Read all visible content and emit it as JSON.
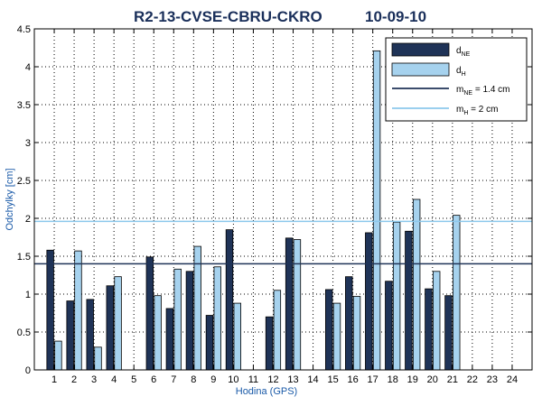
{
  "chart_data": {
    "type": "bar",
    "title": "R2-13-CVSE-CBRU-CKRO",
    "date": "10-09-10",
    "xlabel": "Hodina (GPS)",
    "ylabel": "Odchylky [cm]",
    "ylim": [
      0,
      4.5
    ],
    "yticks": [
      "0",
      "0.5",
      "1",
      "1.5",
      "2",
      "2.5",
      "3",
      "3.5",
      "4",
      "4.5"
    ],
    "categories": [
      "1",
      "2",
      "3",
      "4",
      "5",
      "6",
      "7",
      "8",
      "9",
      "10",
      "11",
      "12",
      "13",
      "14",
      "15",
      "16",
      "17",
      "18",
      "19",
      "20",
      "21",
      "22",
      "23",
      "24"
    ],
    "grid": true,
    "legend_position": "top-right",
    "series": [
      {
        "name": "dNE",
        "label_main": "d",
        "label_sub": "NE",
        "color": "#1f3357",
        "values": [
          1.58,
          0.91,
          0.93,
          1.11,
          null,
          1.49,
          0.81,
          1.3,
          0.72,
          1.85,
          null,
          0.7,
          1.74,
          null,
          1.06,
          1.23,
          1.81,
          1.17,
          1.83,
          1.07,
          0.98,
          null,
          null,
          null
        ]
      },
      {
        "name": "dH",
        "label_main": "d",
        "label_sub": "H",
        "color": "#a6d2ee",
        "values": [
          0.38,
          1.57,
          0.3,
          1.23,
          null,
          0.98,
          1.33,
          1.63,
          1.36,
          0.88,
          null,
          1.05,
          1.72,
          null,
          0.88,
          0.97,
          4.21,
          1.95,
          2.25,
          1.3,
          2.04,
          null,
          null,
          null
        ]
      }
    ],
    "reference_lines": [
      {
        "name": "mNE",
        "label_main": "m",
        "label_sub": "NE",
        "label_rest": " = 1.4 cm",
        "value": 1.4,
        "color": "#1f3357"
      },
      {
        "name": "mH",
        "label_main": "m",
        "label_sub": "H",
        "label_rest": "  = 2 cm",
        "value": 1.96,
        "color": "#8cc8ec"
      }
    ]
  }
}
